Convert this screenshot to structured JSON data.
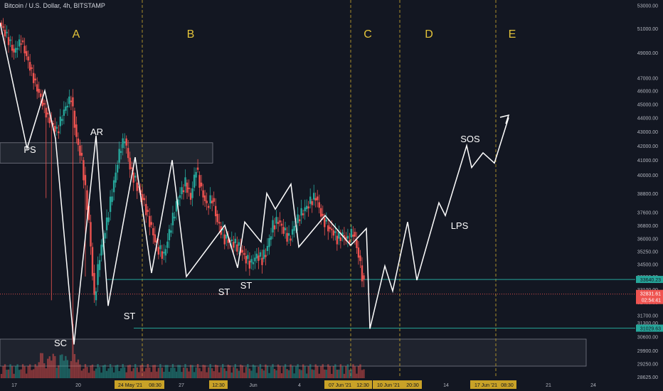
{
  "header": {
    "title": "Bitcoin / U.S. Dollar, 4h, BITSTAMP"
  },
  "colors": {
    "background": "#131722",
    "up_candle": "#26a69a",
    "down_candle": "#ef5350",
    "phase_label": "#e3c33a",
    "annotation": "#ffffff",
    "support_line": "#26a69a",
    "axis_text": "#b2b5be"
  },
  "chart_data": {
    "type": "candlestick",
    "symbol": "BTCUSD",
    "timeframe": "4h",
    "exchange": "BITSTAMP",
    "y_scale": "log",
    "ylim": [
      28400,
      53000
    ],
    "y_ticks": [
      "53000.00",
      "51000.00",
      "49000.00",
      "47000.00",
      "46000.00",
      "45000.00",
      "44000.00",
      "43000.00",
      "42000.00",
      "41000.00",
      "40000.00",
      "38800.00",
      "37600.00",
      "36800.00",
      "36000.00",
      "35250.00",
      "34500.00",
      "33800.00",
      "33100.00",
      "32400.00",
      "31700.00",
      "31300.00",
      "30600.00",
      "29900.00",
      "29250.00",
      "28625.00"
    ],
    "x_ticks": [
      "17",
      "20",
      "24 May '21",
      "08:30",
      "27",
      "12:30",
      "Jun",
      "4",
      "07 Jun '21",
      "12:30",
      "10 Jun '21",
      "20:30",
      "14",
      "17 Jun '21",
      "08:30",
      "21",
      "24"
    ],
    "x_ticks_highlighted": [
      "24 May '21",
      "08:30",
      "07 Jun '21",
      "12:30",
      "10 Jun '21",
      "20:30",
      "17 Jun '21",
      "08:30"
    ],
    "current_price": {
      "value": "32831.61",
      "countdown": "02:54:41"
    },
    "price_labels": [
      "33640.23",
      "31029.63"
    ],
    "horizontal_lines": [
      33640.23,
      31029.63
    ],
    "zones": [
      {
        "name": "PS zone",
        "from": 40800,
        "to": 42200
      },
      {
        "name": "volume zone",
        "from": 29400,
        "to": 30800
      }
    ],
    "phases": [
      "A",
      "B",
      "C",
      "D",
      "E"
    ],
    "annotations": [
      "PS",
      "AR",
      "SC",
      "ST",
      "ST",
      "ST",
      "SOS",
      "LPS"
    ],
    "wyckoff_path_prices": [
      51500,
      41800,
      46000,
      42500,
      30200,
      42700,
      32200,
      41200,
      34000,
      41000,
      33800,
      36800,
      34300,
      37000,
      35800,
      38800,
      37800,
      39400,
      35500,
      37400,
      35600,
      36600,
      31000,
      34400,
      33000,
      37000,
      33600,
      38200,
      37400,
      42000,
      40500,
      41500,
      40800,
      44000
    ],
    "candles_visible": 204
  }
}
